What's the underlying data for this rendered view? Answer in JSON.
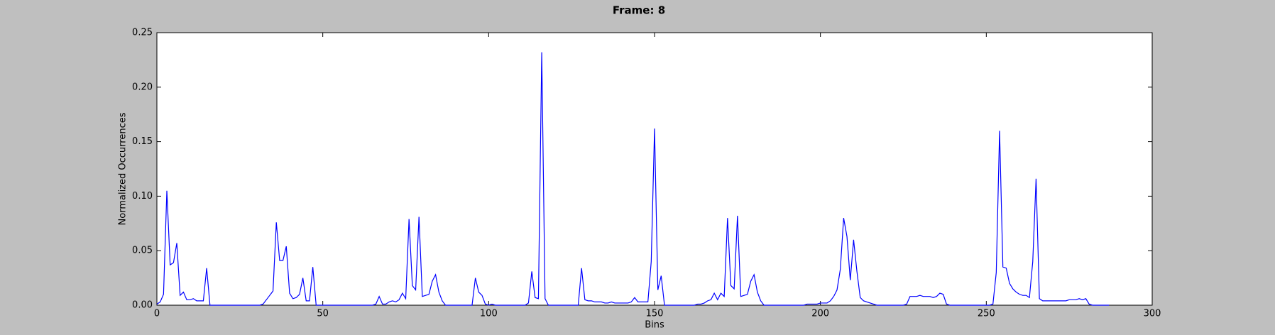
{
  "chart_data": {
    "type": "line",
    "title": "Frame: 8",
    "x_label": "Bins",
    "y_label": "Normalized Occurrences",
    "x": [
      0,
      1,
      2,
      3,
      4,
      5,
      6,
      7,
      8,
      9,
      10,
      11,
      12,
      13,
      14,
      15,
      16,
      17,
      18,
      19,
      20,
      21,
      22,
      23,
      24,
      25,
      26,
      27,
      28,
      29,
      30,
      31,
      32,
      33,
      34,
      35,
      36,
      37,
      38,
      39,
      40,
      41,
      42,
      43,
      44,
      45,
      46,
      47,
      48,
      49,
      50,
      51,
      52,
      53,
      54,
      55,
      56,
      57,
      58,
      59,
      60,
      61,
      62,
      63,
      64,
      65,
      66,
      67,
      68,
      69,
      70,
      71,
      72,
      73,
      74,
      75,
      76,
      77,
      78,
      79,
      80,
      81,
      82,
      83,
      84,
      85,
      86,
      87,
      88,
      89,
      90,
      91,
      92,
      93,
      94,
      95,
      96,
      97,
      98,
      99,
      100,
      101,
      102,
      103,
      104,
      105,
      106,
      107,
      108,
      109,
      110,
      111,
      112,
      113,
      114,
      115,
      116,
      117,
      118,
      119,
      120,
      121,
      122,
      123,
      124,
      125,
      126,
      127,
      128,
      129,
      130,
      131,
      132,
      133,
      134,
      135,
      136,
      137,
      138,
      139,
      140,
      141,
      142,
      143,
      144,
      145,
      146,
      147,
      148,
      149,
      150,
      151,
      152,
      153,
      154,
      155,
      156,
      157,
      158,
      159,
      160,
      161,
      162,
      163,
      164,
      165,
      166,
      167,
      168,
      169,
      170,
      171,
      172,
      173,
      174,
      175,
      176,
      177,
      178,
      179,
      180,
      181,
      182,
      183,
      184,
      185,
      186,
      187,
      188,
      189,
      190,
      191,
      192,
      193,
      194,
      195,
      196,
      197,
      198,
      199,
      200,
      201,
      202,
      203,
      204,
      205,
      206,
      207,
      208,
      209,
      210,
      211,
      212,
      213,
      214,
      215,
      216,
      217,
      218,
      219,
      220,
      221,
      222,
      223,
      224,
      225,
      226,
      227,
      228,
      229,
      230,
      231,
      232,
      233,
      234,
      235,
      236,
      237,
      238,
      239,
      240,
      241,
      242,
      243,
      244,
      245,
      246,
      247,
      248,
      249,
      250,
      251,
      252,
      253,
      254,
      255,
      256,
      257,
      258,
      259,
      260,
      261,
      262,
      263,
      264,
      265,
      266,
      267,
      268,
      269,
      270,
      271,
      272,
      273,
      274,
      275,
      276,
      277,
      278,
      279,
      280,
      281,
      282,
      283,
      284,
      285,
      286,
      287
    ],
    "series": [
      {
        "color": "#0000ff",
        "values": [
          0.001,
          0.003,
          0.01,
          0.105,
          0.037,
          0.039,
          0.057,
          0.009,
          0.012,
          0.005,
          0.005,
          0.006,
          0.004,
          0.004,
          0.004,
          0.034,
          0,
          0,
          0,
          0,
          0,
          0,
          0,
          0,
          0,
          0,
          0,
          0,
          0,
          0,
          0,
          0,
          0.001,
          0.005,
          0.009,
          0.013,
          0.076,
          0.041,
          0.041,
          0.054,
          0.011,
          0.006,
          0.007,
          0.01,
          0.025,
          0.004,
          0.004,
          0.035,
          0,
          0,
          0,
          0,
          0,
          0,
          0,
          0,
          0,
          0,
          0,
          0,
          0,
          0,
          0,
          0,
          0,
          0,
          0.001,
          0.008,
          0.001,
          0.001,
          0.003,
          0.004,
          0.003,
          0.005,
          0.011,
          0.006,
          0.079,
          0.018,
          0.014,
          0.081,
          0.008,
          0.009,
          0.01,
          0.022,
          0.028,
          0.012,
          0.004,
          0,
          0,
          0,
          0,
          0,
          0,
          0,
          0,
          0,
          0.025,
          0.012,
          0.009,
          0.001,
          0,
          0.001,
          0,
          0,
          0,
          0,
          0,
          0,
          0,
          0,
          0,
          0,
          0.002,
          0.031,
          0.007,
          0.006,
          0.232,
          0.006,
          0,
          0,
          0,
          0,
          0,
          0,
          0,
          0,
          0,
          0,
          0.034,
          0.005,
          0.004,
          0.004,
          0.003,
          0.003,
          0.003,
          0.002,
          0.002,
          0.003,
          0.002,
          0.002,
          0.002,
          0.002,
          0.002,
          0.003,
          0.007,
          0.003,
          0.003,
          0.003,
          0.003,
          0.04,
          0.162,
          0.014,
          0.027,
          0,
          0,
          0,
          0,
          0,
          0,
          0,
          0,
          0,
          0,
          0.001,
          0.001,
          0.002,
          0.004,
          0.005,
          0.011,
          0.005,
          0.011,
          0.008,
          0.08,
          0.018,
          0.015,
          0.082,
          0.008,
          0.009,
          0.01,
          0.022,
          0.028,
          0.012,
          0.004,
          0,
          0,
          0,
          0,
          0,
          0,
          0,
          0,
          0,
          0,
          0,
          0,
          0,
          0.001,
          0.001,
          0.001,
          0.001,
          0.002,
          0.002,
          0.002,
          0.004,
          0.008,
          0.014,
          0.033,
          0.08,
          0.063,
          0.023,
          0.06,
          0.031,
          0.007,
          0.004,
          0.003,
          0.002,
          0.001,
          0,
          0,
          0,
          0,
          0,
          0,
          0,
          0,
          0,
          0.001,
          0.008,
          0.008,
          0.008,
          0.009,
          0.008,
          0.008,
          0.008,
          0.007,
          0.008,
          0.011,
          0.01,
          0.001,
          0,
          0,
          0,
          0,
          0,
          0,
          0,
          0,
          0,
          0,
          0,
          0,
          0,
          0.001,
          0.03,
          0.16,
          0.035,
          0.034,
          0.02,
          0.015,
          0.012,
          0.01,
          0.009,
          0.009,
          0.007,
          0.04,
          0.116,
          0.006,
          0.004,
          0.004,
          0.004,
          0.004,
          0.004,
          0.004,
          0.004,
          0.004,
          0.005,
          0.005,
          0.005,
          0.006,
          0.005,
          0.006,
          0.001,
          0,
          0,
          0,
          0,
          0,
          0
        ]
      }
    ],
    "xlim": [
      0,
      300
    ],
    "xticks": [
      0,
      50,
      100,
      150,
      200,
      250,
      300
    ],
    "ylim": [
      0,
      0.25
    ],
    "yticks": [
      {
        "value": 0,
        "label": "0.00"
      },
      0.05,
      {
        "value": 0.1,
        "label": "0.10"
      },
      0.15,
      {
        "value": 0.2,
        "label": "0.20"
      },
      0.25
    ],
    "grid": false
  }
}
